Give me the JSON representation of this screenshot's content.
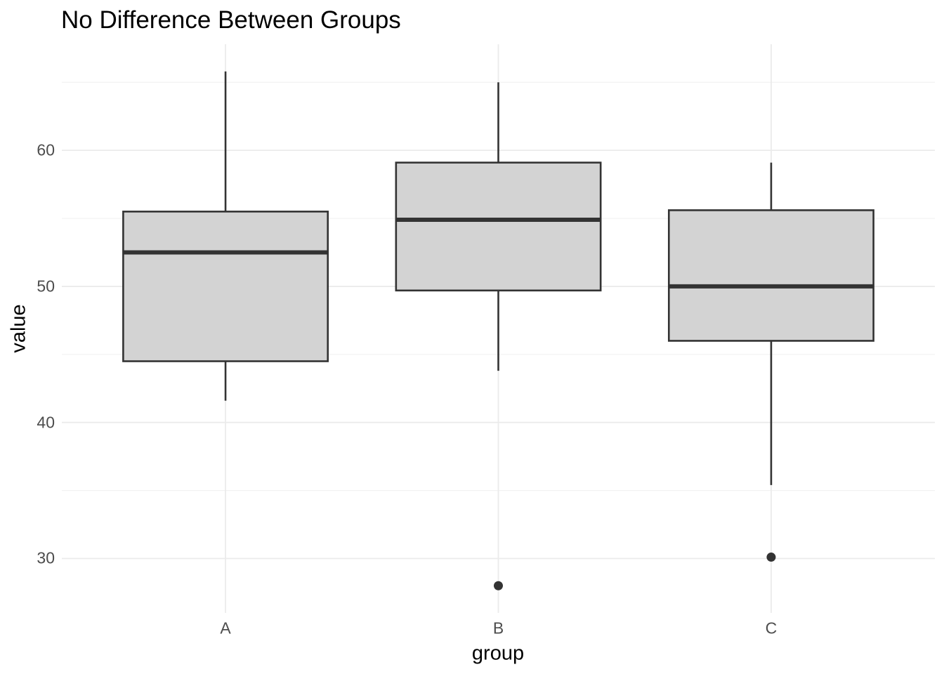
{
  "chart_data": {
    "type": "boxplot",
    "title": "No Difference Between Groups",
    "xlabel": "group",
    "ylabel": "value",
    "categories": [
      "A",
      "B",
      "C"
    ],
    "series": [
      {
        "name": "A",
        "whisker_low": 41.6,
        "q1": 44.5,
        "median": 52.5,
        "q3": 55.5,
        "whisker_high": 65.8,
        "outliers": []
      },
      {
        "name": "B",
        "whisker_low": 43.8,
        "q1": 49.7,
        "median": 54.9,
        "q3": 59.1,
        "whisker_high": 65.0,
        "outliers": [
          28.0
        ]
      },
      {
        "name": "C",
        "whisker_low": 35.4,
        "q1": 46.0,
        "median": 50.0,
        "q3": 55.6,
        "whisker_high": 59.1,
        "outliers": [
          30.1
        ]
      }
    ],
    "ylim": [
      26.0,
      67.8
    ],
    "yticks_major": [
      30,
      40,
      50,
      60
    ],
    "yticks_minor": [
      35,
      45,
      55,
      65
    ],
    "grid": true,
    "legend": "none",
    "colors": {
      "background": "#FFFFFF",
      "box_fill": "#D3D3D3",
      "box_stroke": "#333333",
      "median_stroke": "#333333",
      "whisker_stroke": "#333333",
      "outlier_fill": "#333333",
      "grid_major": "#EBEBEB",
      "grid_minor": "#F2F2F2",
      "axis_text": "#4D4D4D",
      "title_text": "#000000"
    }
  }
}
